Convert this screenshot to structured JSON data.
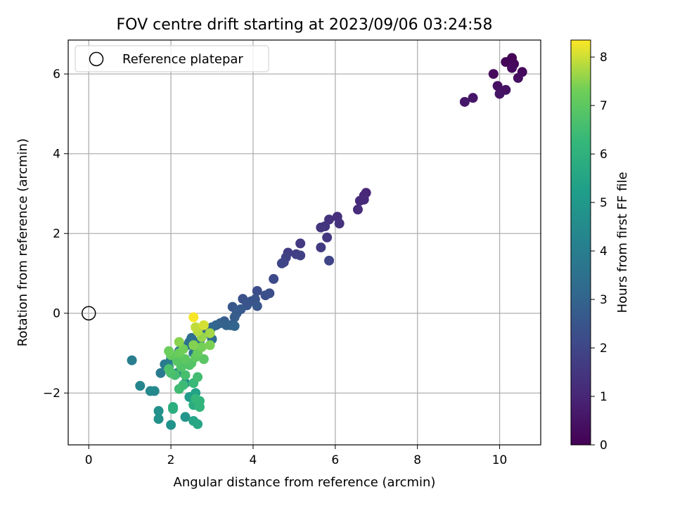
{
  "chart_data": {
    "type": "scatter",
    "title": "FOV centre drift starting at 2023/09/06 03:24:58",
    "xlabel": "Angular distance from reference (arcmin)",
    "ylabel": "Rotation from reference (arcmin)",
    "xlim": [
      -0.5,
      11.0
    ],
    "ylim": [
      -3.3,
      6.85
    ],
    "xticks": [
      0,
      2,
      4,
      6,
      8,
      10
    ],
    "xtick_labels": [
      "0",
      "2",
      "4",
      "6",
      "8",
      "10"
    ],
    "yticks": [
      -2,
      0,
      2,
      4,
      6
    ],
    "ytick_labels": [
      "−2",
      "0",
      "2",
      "4",
      "6"
    ],
    "grid": true,
    "legend": {
      "position": "top-left",
      "entries": [
        {
          "label": "Reference platepar",
          "marker": "open-circle"
        }
      ]
    },
    "reference_point": {
      "x": 0,
      "y": 0
    },
    "colorbar": {
      "label": "Hours from first FF file",
      "range": [
        0,
        8.35
      ],
      "ticks": [
        0,
        1,
        2,
        3,
        4,
        5,
        6,
        7,
        8
      ],
      "tick_labels": [
        "0",
        "1",
        "2",
        "3",
        "4",
        "5",
        "6",
        "7",
        "8"
      ],
      "colormap": "viridis"
    },
    "points": [
      {
        "x": 10.3,
        "y": 6.4,
        "c": 0.05
      },
      {
        "x": 10.15,
        "y": 6.3,
        "c": 0.1
      },
      {
        "x": 10.35,
        "y": 6.25,
        "c": 0.15
      },
      {
        "x": 10.55,
        "y": 6.05,
        "c": 0.2
      },
      {
        "x": 10.3,
        "y": 6.15,
        "c": 0.25
      },
      {
        "x": 9.85,
        "y": 6.0,
        "c": 0.3
      },
      {
        "x": 10.45,
        "y": 5.9,
        "c": 0.35
      },
      {
        "x": 9.95,
        "y": 5.7,
        "c": 0.4
      },
      {
        "x": 10.15,
        "y": 5.6,
        "c": 0.45
      },
      {
        "x": 10.0,
        "y": 5.5,
        "c": 0.5
      },
      {
        "x": 9.35,
        "y": 5.4,
        "c": 0.55
      },
      {
        "x": 9.15,
        "y": 5.3,
        "c": 0.6
      },
      {
        "x": 6.75,
        "y": 3.02,
        "c": 1.0
      },
      {
        "x": 6.7,
        "y": 2.95,
        "c": 1.05
      },
      {
        "x": 6.7,
        "y": 2.85,
        "c": 1.1
      },
      {
        "x": 6.6,
        "y": 2.82,
        "c": 1.15
      },
      {
        "x": 6.55,
        "y": 2.6,
        "c": 1.2
      },
      {
        "x": 6.05,
        "y": 2.42,
        "c": 1.3
      },
      {
        "x": 5.85,
        "y": 2.35,
        "c": 1.35
      },
      {
        "x": 6.1,
        "y": 2.25,
        "c": 1.4
      },
      {
        "x": 5.75,
        "y": 2.18,
        "c": 1.45
      },
      {
        "x": 5.65,
        "y": 2.15,
        "c": 1.5
      },
      {
        "x": 5.8,
        "y": 1.9,
        "c": 1.55
      },
      {
        "x": 5.15,
        "y": 1.75,
        "c": 1.6
      },
      {
        "x": 5.65,
        "y": 1.65,
        "c": 1.65
      },
      {
        "x": 4.85,
        "y": 1.52,
        "c": 1.7
      },
      {
        "x": 5.05,
        "y": 1.48,
        "c": 1.75
      },
      {
        "x": 5.15,
        "y": 1.45,
        "c": 1.8
      },
      {
        "x": 4.8,
        "y": 1.4,
        "c": 1.85
      },
      {
        "x": 4.75,
        "y": 1.28,
        "c": 1.9
      },
      {
        "x": 5.85,
        "y": 1.32,
        "c": 1.95
      },
      {
        "x": 4.7,
        "y": 1.25,
        "c": 2.0
      },
      {
        "x": 4.5,
        "y": 0.86,
        "c": 2.1
      },
      {
        "x": 4.1,
        "y": 0.56,
        "c": 2.2
      },
      {
        "x": 4.4,
        "y": 0.5,
        "c": 2.25
      },
      {
        "x": 4.3,
        "y": 0.45,
        "c": 2.3
      },
      {
        "x": 3.75,
        "y": 0.36,
        "c": 2.35
      },
      {
        "x": 3.95,
        "y": 0.3,
        "c": 2.4
      },
      {
        "x": 4.05,
        "y": 0.35,
        "c": 2.45
      },
      {
        "x": 3.85,
        "y": 0.2,
        "c": 2.5
      },
      {
        "x": 4.1,
        "y": 0.18,
        "c": 2.55
      },
      {
        "x": 3.5,
        "y": 0.16,
        "c": 2.6
      },
      {
        "x": 3.7,
        "y": 0.1,
        "c": 2.65
      },
      {
        "x": 3.6,
        "y": 0.0,
        "c": 2.7
      },
      {
        "x": 3.55,
        "y": -0.1,
        "c": 2.75
      },
      {
        "x": 3.3,
        "y": -0.2,
        "c": 2.8
      },
      {
        "x": 3.2,
        "y": -0.25,
        "c": 2.85
      },
      {
        "x": 3.45,
        "y": -0.3,
        "c": 2.9
      },
      {
        "x": 3.35,
        "y": -0.3,
        "c": 2.95
      },
      {
        "x": 3.1,
        "y": -0.3,
        "c": 3.0
      },
      {
        "x": 3.55,
        "y": -0.32,
        "c": 3.05
      },
      {
        "x": 3.0,
        "y": -0.35,
        "c": 3.1
      },
      {
        "x": 2.95,
        "y": -0.45,
        "c": 3.15
      },
      {
        "x": 2.85,
        "y": -0.5,
        "c": 3.2
      },
      {
        "x": 2.75,
        "y": -0.55,
        "c": 3.25
      },
      {
        "x": 2.5,
        "y": -0.62,
        "c": 3.3
      },
      {
        "x": 3.0,
        "y": -0.65,
        "c": 3.35
      },
      {
        "x": 2.7,
        "y": -0.7,
        "c": 3.4
      },
      {
        "x": 2.45,
        "y": -0.72,
        "c": 3.45
      },
      {
        "x": 2.4,
        "y": -0.8,
        "c": 3.5
      },
      {
        "x": 2.3,
        "y": -0.85,
        "c": 3.55
      },
      {
        "x": 2.6,
        "y": -0.9,
        "c": 3.6
      },
      {
        "x": 2.2,
        "y": -0.95,
        "c": 3.65
      },
      {
        "x": 2.55,
        "y": -1.0,
        "c": 3.7
      },
      {
        "x": 2.1,
        "y": -1.1,
        "c": 3.75
      },
      {
        "x": 1.85,
        "y": -1.28,
        "c": 3.8
      },
      {
        "x": 1.75,
        "y": -1.5,
        "c": 3.85
      },
      {
        "x": 2.0,
        "y": -1.15,
        "c": 3.9
      },
      {
        "x": 1.05,
        "y": -1.18,
        "c": 4.0
      },
      {
        "x": 1.95,
        "y": -1.35,
        "c": 4.05
      },
      {
        "x": 2.15,
        "y": -1.5,
        "c": 4.1
      },
      {
        "x": 1.25,
        "y": -1.82,
        "c": 4.3
      },
      {
        "x": 1.5,
        "y": -1.95,
        "c": 4.4
      },
      {
        "x": 1.6,
        "y": -1.95,
        "c": 4.45
      },
      {
        "x": 2.35,
        "y": -1.75,
        "c": 4.5
      },
      {
        "x": 1.7,
        "y": -2.45,
        "c": 4.7
      },
      {
        "x": 1.7,
        "y": -2.65,
        "c": 4.75
      },
      {
        "x": 2.0,
        "y": -2.8,
        "c": 4.8
      },
      {
        "x": 2.35,
        "y": -2.6,
        "c": 4.9
      },
      {
        "x": 2.45,
        "y": -2.1,
        "c": 5.2
      },
      {
        "x": 2.6,
        "y": -2.0,
        "c": 5.4
      },
      {
        "x": 2.55,
        "y": -2.7,
        "c": 5.5
      },
      {
        "x": 2.65,
        "y": -2.78,
        "c": 5.6
      },
      {
        "x": 2.55,
        "y": -2.3,
        "c": 5.8
      },
      {
        "x": 2.05,
        "y": -2.35,
        "c": 5.85
      },
      {
        "x": 2.05,
        "y": -2.4,
        "c": 5.9
      },
      {
        "x": 2.7,
        "y": -2.2,
        "c": 6.1
      },
      {
        "x": 2.7,
        "y": -2.35,
        "c": 6.15
      },
      {
        "x": 2.6,
        "y": -2.15,
        "c": 6.2
      },
      {
        "x": 2.55,
        "y": -1.75,
        "c": 6.3
      },
      {
        "x": 2.3,
        "y": -1.8,
        "c": 6.4
      },
      {
        "x": 2.2,
        "y": -1.9,
        "c": 6.45
      },
      {
        "x": 2.65,
        "y": -1.6,
        "c": 6.5
      },
      {
        "x": 2.1,
        "y": -1.55,
        "c": 6.55
      },
      {
        "x": 2.35,
        "y": -1.55,
        "c": 6.6
      },
      {
        "x": 2.0,
        "y": -1.5,
        "c": 6.65
      },
      {
        "x": 1.95,
        "y": -1.4,
        "c": 6.7
      },
      {
        "x": 2.45,
        "y": -1.3,
        "c": 6.75
      },
      {
        "x": 2.25,
        "y": -1.35,
        "c": 6.8
      },
      {
        "x": 2.5,
        "y": -1.25,
        "c": 6.85
      },
      {
        "x": 2.15,
        "y": -1.2,
        "c": 6.9
      },
      {
        "x": 2.8,
        "y": -1.15,
        "c": 6.95
      },
      {
        "x": 2.35,
        "y": -1.15,
        "c": 7.0
      },
      {
        "x": 2.6,
        "y": -1.1,
        "c": 7.05
      },
      {
        "x": 2.0,
        "y": -1.05,
        "c": 7.1
      },
      {
        "x": 2.65,
        "y": -1.0,
        "c": 7.15
      },
      {
        "x": 2.2,
        "y": -1.0,
        "c": 7.2
      },
      {
        "x": 1.95,
        "y": -0.95,
        "c": 7.25
      },
      {
        "x": 2.3,
        "y": -0.9,
        "c": 7.3
      },
      {
        "x": 2.75,
        "y": -0.85,
        "c": 7.35
      },
      {
        "x": 2.95,
        "y": -0.8,
        "c": 7.4
      },
      {
        "x": 2.55,
        "y": -0.8,
        "c": 7.45
      },
      {
        "x": 2.2,
        "y": -0.72,
        "c": 7.5
      },
      {
        "x": 2.75,
        "y": -0.6,
        "c": 7.6
      },
      {
        "x": 2.95,
        "y": -0.5,
        "c": 7.7
      },
      {
        "x": 2.65,
        "y": -0.45,
        "c": 7.8
      },
      {
        "x": 2.6,
        "y": -0.35,
        "c": 7.9
      },
      {
        "x": 2.8,
        "y": -0.3,
        "c": 8.05
      },
      {
        "x": 2.55,
        "y": -0.1,
        "c": 8.3
      }
    ]
  }
}
